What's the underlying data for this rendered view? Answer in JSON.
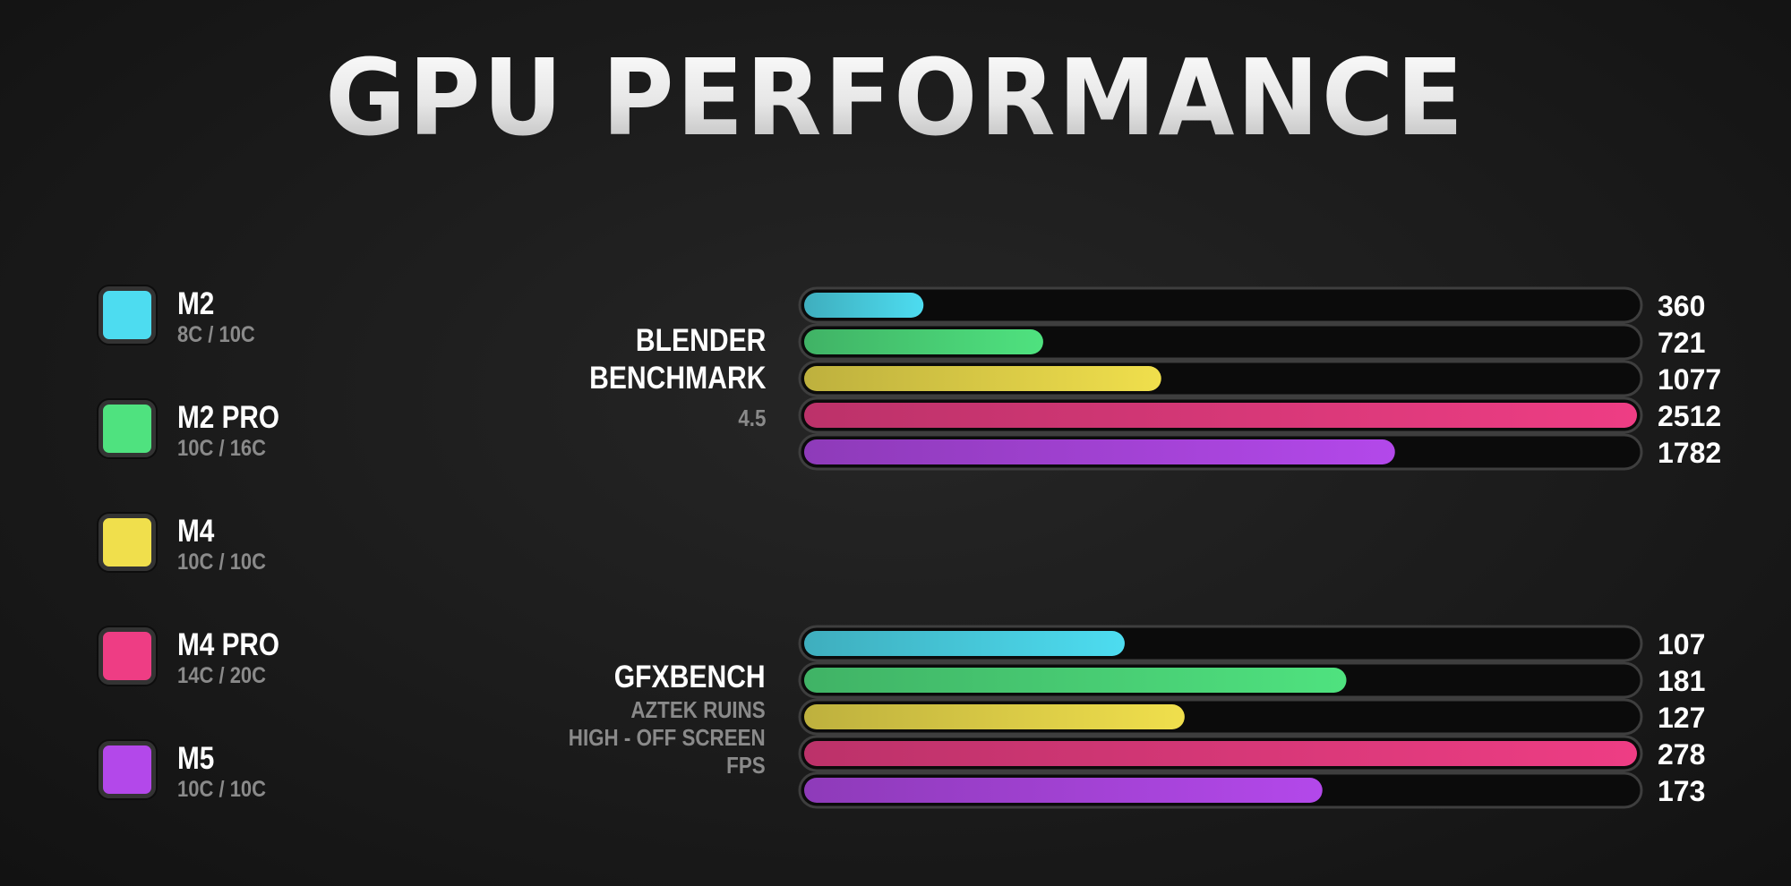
{
  "title": "GPU PERFORMANCE",
  "legend": [
    {
      "name": "M2",
      "cores": "8C / 10C",
      "color": "#4ddcf0"
    },
    {
      "name": "M2 PRO",
      "cores": "10C / 16C",
      "color": "#4fe27f"
    },
    {
      "name": "M4",
      "cores": "10C / 10C",
      "color": "#f0df4c"
    },
    {
      "name": "M4 PRO",
      "cores": "14C / 20C",
      "color": "#ee3d84"
    },
    {
      "name": "M5",
      "cores": "10C / 10C",
      "color": "#b348ea"
    }
  ],
  "groups": {
    "blender": {
      "line1": "BLENDER",
      "line2": "BENCHMARK",
      "line3": "4.5"
    },
    "gfx": {
      "line1": "GFXBENCH",
      "line2": "AZTEK RUINS",
      "line3": "HIGH - OFF SCREEN",
      "line4": "FPS"
    }
  },
  "chart_data": [
    {
      "type": "bar",
      "orientation": "horizontal",
      "title": "BLENDER BENCHMARK 4.5",
      "categories": [
        "M2",
        "M2 PRO",
        "M4",
        "M4 PRO",
        "M5"
      ],
      "values": [
        360,
        721,
        1077,
        2512,
        1782
      ],
      "data_labels": [
        "360",
        "721",
        "1077",
        "2512",
        "1782"
      ],
      "colors": [
        "#4ddcf0",
        "#4fe27f",
        "#f0df4c",
        "#ee3d84",
        "#b348ea"
      ],
      "xlim": [
        0,
        2512
      ]
    },
    {
      "type": "bar",
      "orientation": "horizontal",
      "title": "GFXBENCH AZTEK RUINS HIGH - OFF SCREEN FPS",
      "categories": [
        "M2",
        "M2 PRO",
        "M4",
        "M4 PRO",
        "M5"
      ],
      "values": [
        107,
        181,
        127,
        278,
        173
      ],
      "data_labels": [
        "107",
        "181",
        "127",
        "278",
        "173"
      ],
      "colors": [
        "#4ddcf0",
        "#4fe27f",
        "#f0df4c",
        "#ee3d84",
        "#b348ea"
      ],
      "xlim": [
        0,
        278
      ]
    }
  ]
}
